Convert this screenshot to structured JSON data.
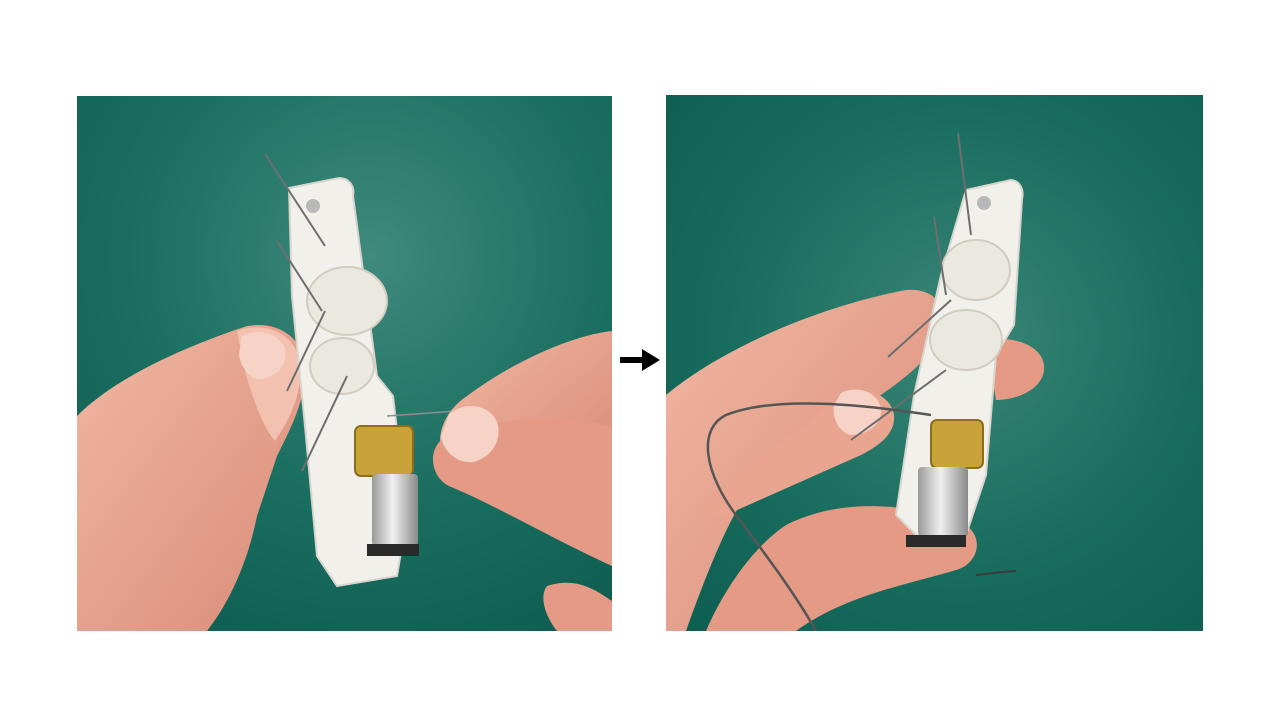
{
  "slide": {
    "background": "#ffffff",
    "panels": [
      {
        "id": "before",
        "depicts": "hands-threading-wire-into-3d-printed-finger-mechanism"
      },
      {
        "id": "after",
        "depicts": "wire-threaded-through-finger-mechanism"
      }
    ],
    "arrow_icon": "right-arrow-icon",
    "colors": {
      "backdrop_green": "#0f6b5c",
      "backdrop_green_light": "#3f8a7c",
      "printed_part_white": "#f2f0ea",
      "skin": "#e7a08c",
      "gear_brass": "#c9a23a",
      "motor_silver": "#c8c8c8",
      "arrow": "#000000"
    }
  }
}
